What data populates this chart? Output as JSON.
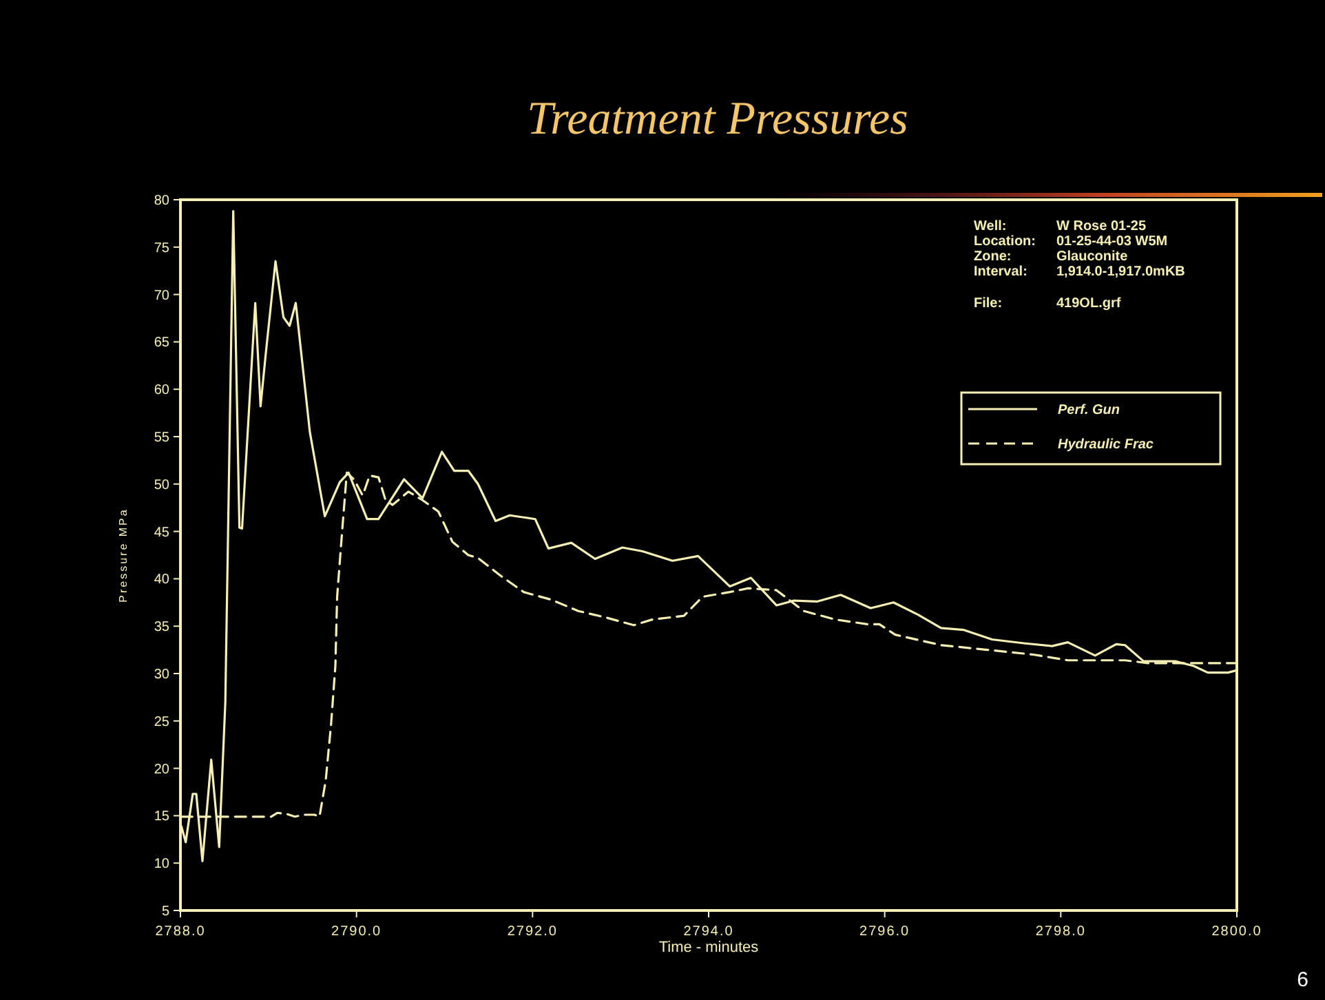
{
  "chart_data": {
    "type": "line",
    "title": "Treatment Pressures",
    "xlabel": "Time - minutes",
    "ylabel": "Pressure   MPa",
    "xlim": [
      2788,
      2800
    ],
    "ylim": [
      5,
      80
    ],
    "xticks": [
      {
        "value": 2788,
        "label": "2788.0"
      },
      {
        "value": 2790,
        "label": "2790.0"
      },
      {
        "value": 2792,
        "label": "2792.0"
      },
      {
        "value": 2794,
        "label": "2794.0"
      },
      {
        "value": 2796,
        "label": "2796.0"
      },
      {
        "value": 2798,
        "label": "2798.0"
      },
      {
        "value": 2800,
        "label": "2800.0"
      }
    ],
    "yticks": [
      5,
      10,
      15,
      20,
      25,
      30,
      35,
      40,
      45,
      50,
      55,
      60,
      65,
      70,
      75,
      80
    ],
    "grid": false,
    "legend": "top right",
    "annotations": [
      "Well:",
      "W Rose 01-25",
      "Location:",
      "01-25-44-03  W5M",
      "Zone:",
      "Glauconite",
      "Interval:",
      "1,914.0-1,917.0mKB",
      "File:",
      "419OL.grf",
      "6"
    ],
    "series": [
      {
        "name": "Perf. Gun",
        "color": "#f6efb4",
        "line_style": "solid",
        "x": [
          2788.01,
          2788.06,
          2788.14,
          2788.18,
          2788.25,
          2788.35,
          2788.44,
          2788.51,
          2788.6,
          2788.67,
          2788.7,
          2788.85,
          2788.91,
          2788.97,
          2789.08,
          2789.17,
          2789.24,
          2789.31,
          2789.47,
          2789.64,
          2789.81,
          2789.91,
          2790.12,
          2790.25,
          2790.54,
          2790.75,
          2790.97,
          2791.11,
          2791.27,
          2791.38,
          2791.58,
          2791.74,
          2792.03,
          2792.18,
          2792.44,
          2792.71,
          2793.02,
          2793.25,
          2793.59,
          2793.88,
          2794.24,
          2794.48,
          2794.77,
          2794.97,
          2795.23,
          2795.5,
          2795.84,
          2796.1,
          2796.38,
          2796.64,
          2796.9,
          2797.22,
          2797.58,
          2797.9,
          2798.08,
          2798.39,
          2798.63,
          2798.73,
          2798.94,
          2799.3,
          2799.51,
          2799.67,
          2799.9,
          2799.98
        ],
        "values": [
          13.9,
          12.2,
          17.3,
          17.3,
          10.2,
          20.9,
          11.7,
          27,
          78.8,
          45.4,
          45.3,
          69.1,
          58.2,
          63.8,
          73.5,
          67.6,
          66.7,
          69.1,
          55.5,
          46.6,
          50.2,
          51.2,
          46.3,
          46.3,
          50.5,
          48.5,
          53.4,
          51.4,
          51.4,
          50,
          46.1,
          46.7,
          46.3,
          43.2,
          43.8,
          42.1,
          43.3,
          42.9,
          41.9,
          42.4,
          39.2,
          40.1,
          37.2,
          37.7,
          37.6,
          38.3,
          36.9,
          37.5,
          36.2,
          34.8,
          34.6,
          33.6,
          33.2,
          32.9,
          33.3,
          31.9,
          33.1,
          33,
          31.3,
          31.3,
          30.8,
          30.1,
          30.1,
          30.3
        ]
      },
      {
        "name": "Hydraulic Frac",
        "color": "#f6efb4",
        "line_style": "dashed",
        "x": [
          2788.01,
          2789.03,
          2789.1,
          2789.2,
          2789.3,
          2789.4,
          2789.52,
          2789.58,
          2789.65,
          2789.71,
          2789.76,
          2789.78,
          2789.84,
          2789.89,
          2789.97,
          2790.07,
          2790.15,
          2790.25,
          2790.33,
          2790.41,
          2790.59,
          2790.75,
          2790.93,
          2791.09,
          2791.27,
          2791.38,
          2791.64,
          2791.9,
          2792.21,
          2792.52,
          2792.84,
          2793.15,
          2793.36,
          2793.72,
          2793.93,
          2794.24,
          2794.45,
          2794.77,
          2795.08,
          2795.44,
          2795.81,
          2795.94,
          2796.12,
          2796.64,
          2797.17,
          2797.69,
          2798.08,
          2798.73,
          2798.99,
          2799.98
        ],
        "values": [
          14.9,
          14.9,
          15.3,
          15.2,
          14.9,
          15.1,
          15.1,
          14.9,
          18.7,
          24.5,
          30.8,
          38.1,
          45.4,
          51.2,
          50.5,
          48.8,
          50.9,
          50.7,
          48.3,
          47.8,
          49.2,
          48.3,
          47.1,
          43.9,
          42.5,
          42.2,
          40.3,
          38.6,
          37.8,
          36.6,
          35.9,
          35.1,
          35.7,
          36.1,
          38.1,
          38.6,
          39,
          38.8,
          36.6,
          35.7,
          35.2,
          35.2,
          34.1,
          33,
          32.5,
          32,
          31.4,
          31.4,
          31.1,
          31.1
        ]
      }
    ]
  }
}
